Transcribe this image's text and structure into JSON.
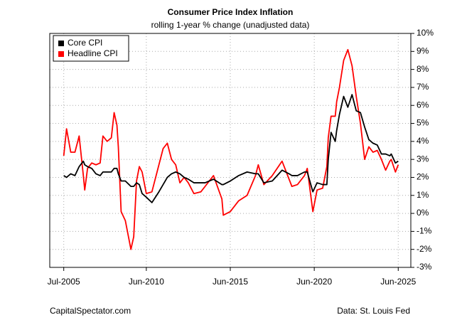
{
  "chart_data": {
    "type": "line",
    "title": "Consumer Price Index Inflation",
    "subtitle": "rolling 1-year % change (unadjusted data)",
    "credit": "CapitalSpectator.com",
    "source": "Data: St. Louis Fed",
    "x": [
      "2005-07",
      "2005-09",
      "2005-12",
      "2006-03",
      "2006-06",
      "2006-09",
      "2006-10",
      "2006-12",
      "2007-03",
      "2007-06",
      "2007-09",
      "2007-11",
      "2008-02",
      "2008-05",
      "2008-07",
      "2008-09",
      "2008-10",
      "2008-12",
      "2009-03",
      "2009-07",
      "2009-09",
      "2009-11",
      "2010-01",
      "2010-03",
      "2010-06",
      "2010-10",
      "2011-03",
      "2011-06",
      "2011-09",
      "2011-12",
      "2012-03",
      "2012-06",
      "2012-09",
      "2012-12",
      "2013-04",
      "2013-09",
      "2013-12",
      "2014-06",
      "2014-12",
      "2015-01",
      "2015-06",
      "2015-12",
      "2016-06",
      "2016-12",
      "2017-02",
      "2017-06",
      "2017-12",
      "2018-07",
      "2018-12",
      "2019-02",
      "2019-06",
      "2019-11",
      "2020-01",
      "2020-05",
      "2020-08",
      "2020-12",
      "2021-03",
      "2021-04",
      "2021-06",
      "2021-09",
      "2021-10",
      "2021-12",
      "2022-03",
      "2022-06",
      "2022-09",
      "2022-12",
      "2023-03",
      "2023-06",
      "2023-09",
      "2023-12",
      "2024-03",
      "2024-06",
      "2024-09",
      "2024-12",
      "2025-01",
      "2025-04",
      "2025-06"
    ],
    "series": [
      {
        "name": "Core CPI",
        "color": "#000000",
        "values": [
          2.1,
          2.0,
          2.2,
          2.1,
          2.6,
          2.9,
          2.7,
          2.6,
          2.5,
          2.2,
          2.1,
          2.3,
          2.3,
          2.3,
          2.5,
          2.5,
          2.2,
          1.8,
          1.8,
          1.5,
          1.5,
          1.7,
          1.6,
          1.1,
          0.9,
          0.6,
          1.2,
          1.6,
          2.0,
          2.2,
          2.3,
          2.2,
          2.0,
          1.9,
          1.7,
          1.7,
          1.7,
          1.9,
          1.6,
          1.6,
          1.8,
          2.1,
          2.3,
          2.2,
          2.2,
          1.7,
          1.8,
          2.4,
          2.2,
          2.1,
          2.1,
          2.3,
          2.3,
          1.2,
          1.7,
          1.6,
          1.6,
          3.0,
          4.5,
          4.0,
          4.6,
          5.5,
          6.5,
          5.9,
          6.6,
          5.7,
          5.6,
          4.8,
          4.1,
          3.9,
          3.8,
          3.3,
          3.3,
          3.2,
          3.3,
          2.8,
          2.9
        ]
      },
      {
        "name": "Headline CPI",
        "color": "#ff0000",
        "values": [
          3.2,
          4.7,
          3.4,
          3.4,
          4.3,
          2.1,
          1.3,
          2.5,
          2.8,
          2.7,
          2.8,
          4.3,
          4.0,
          4.2,
          5.6,
          4.9,
          3.7,
          0.1,
          -0.4,
          -2.0,
          -1.3,
          1.8,
          2.6,
          2.3,
          1.1,
          1.2,
          2.7,
          3.6,
          3.9,
          3.0,
          2.7,
          1.7,
          2.0,
          1.7,
          1.1,
          1.2,
          1.5,
          2.1,
          0.8,
          -0.1,
          0.1,
          0.7,
          1.0,
          2.1,
          2.7,
          1.6,
          2.1,
          2.9,
          1.9,
          1.5,
          1.6,
          2.1,
          2.5,
          0.1,
          1.3,
          1.4,
          2.6,
          4.2,
          5.4,
          5.4,
          6.2,
          7.0,
          8.5,
          9.1,
          8.2,
          6.5,
          5.0,
          3.0,
          3.7,
          3.4,
          3.5,
          3.0,
          2.4,
          2.9,
          3.0,
          2.3,
          2.7
        ]
      }
    ],
    "xlim": [
      "2004-09",
      "2026-03"
    ],
    "xticks": [
      {
        "value": "2005-07",
        "label": "Jul-2005"
      },
      {
        "value": "2010-06",
        "label": "Jun-2010"
      },
      {
        "value": "2015-06",
        "label": "Jun-2015"
      },
      {
        "value": "2020-06",
        "label": "Jun-2020"
      },
      {
        "value": "2025-06",
        "label": "Jun-2025"
      }
    ],
    "ylim": [
      -3,
      10
    ],
    "yticks": [
      {
        "value": -3,
        "label": "-3%"
      },
      {
        "value": -2,
        "label": "-2%"
      },
      {
        "value": -1,
        "label": "-1%"
      },
      {
        "value": 0,
        "label": "0%"
      },
      {
        "value": 1,
        "label": "1%"
      },
      {
        "value": 2,
        "label": "2%"
      },
      {
        "value": 3,
        "label": "3%"
      },
      {
        "value": 4,
        "label": "4%"
      },
      {
        "value": 5,
        "label": "5%"
      },
      {
        "value": 6,
        "label": "6%"
      },
      {
        "value": 7,
        "label": "7%"
      },
      {
        "value": 8,
        "label": "8%"
      },
      {
        "value": 9,
        "label": "9%"
      },
      {
        "value": 10,
        "label": "10%"
      }
    ],
    "grid": true,
    "legend": "top-left"
  }
}
